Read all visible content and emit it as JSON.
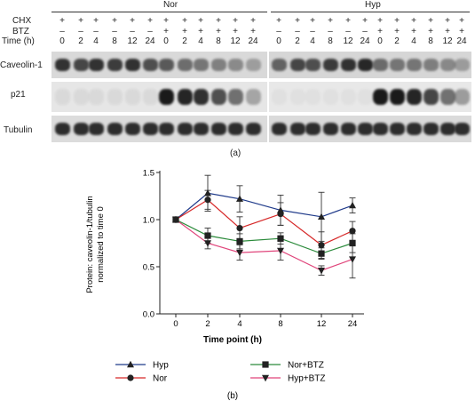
{
  "blot": {
    "groups": [
      {
        "name": "Nor",
        "lanes": 12
      },
      {
        "name": "Hyp",
        "lanes": 12
      }
    ],
    "row_labels": {
      "chx": "CHX",
      "btz": "BTZ",
      "time": "Time (h)"
    },
    "chx": [
      "+",
      "+",
      "+",
      "+",
      "+",
      "+",
      "+",
      "+",
      "+",
      "+",
      "+",
      "+"
    ],
    "btz": [
      "–",
      "–",
      "–",
      "–",
      "–",
      "–",
      "+",
      "+",
      "+",
      "+",
      "+",
      "+"
    ],
    "times": [
      "0",
      "2",
      "4",
      "8",
      "12",
      "24",
      "0",
      "2",
      "4",
      "8",
      "12",
      "24"
    ],
    "proteins": [
      "Caveolin-1",
      "p21",
      "Tubulin"
    ],
    "panel_label": "(a)",
    "intensity": {
      "nor_caveolin": [
        0.85,
        0.75,
        0.85,
        0.8,
        0.85,
        0.7,
        0.65,
        0.55,
        0.5,
        0.45,
        0.4,
        0.3
      ],
      "hyp_caveolin": [
        0.6,
        0.75,
        0.7,
        0.8,
        0.85,
        0.9,
        0.55,
        0.5,
        0.5,
        0.45,
        0.4,
        0.3
      ],
      "nor_p21": [
        0.06,
        0.06,
        0.06,
        0.06,
        0.06,
        0.06,
        0.95,
        0.9,
        0.85,
        0.7,
        0.55,
        0.3
      ],
      "hyp_p21": [
        0.03,
        0.03,
        0.03,
        0.03,
        0.03,
        0.03,
        0.95,
        0.95,
        0.9,
        0.75,
        0.55,
        0.35
      ],
      "tubulin": [
        0.9,
        0.9,
        0.9,
        0.9,
        0.9,
        0.9,
        0.9,
        0.9,
        0.9,
        0.9,
        0.9,
        0.9
      ]
    }
  },
  "chart_data": {
    "type": "line",
    "panel_label": "(b)",
    "xlabel": "Time point (h)",
    "ylabel": "Protein: caveolin-1/tubulin normalized to time 0",
    "ylabel_lines": [
      "Protein: caveolin-1/tubulin",
      "normalized to time 0"
    ],
    "categories": [
      "0",
      "2",
      "4",
      "8",
      "12",
      "24"
    ],
    "y_ticks": [
      "0.0",
      "0.5",
      "1.0",
      "1.5"
    ],
    "ylim": [
      0,
      1.5
    ],
    "series": [
      {
        "name": "Hyp",
        "color": "#1f3a8a",
        "marker": "triangle-up",
        "values": [
          1.0,
          1.28,
          1.22,
          1.1,
          1.03,
          1.15
        ],
        "err": [
          0,
          0.19,
          0.14,
          0.16,
          0.26,
          0.08
        ]
      },
      {
        "name": "Nor",
        "color": "#d62828",
        "marker": "circle",
        "values": [
          1.0,
          1.21,
          0.91,
          1.06,
          0.73,
          0.88
        ],
        "err": [
          0,
          0.1,
          0.12,
          0.12,
          0.14,
          0.1
        ]
      },
      {
        "name": "Nor+BTZ",
        "color": "#2a8a3a",
        "marker": "square",
        "values": [
          1.0,
          0.83,
          0.77,
          0.8,
          0.64,
          0.75
        ],
        "err": [
          0,
          0.08,
          0.08,
          0.06,
          0.06,
          0.1
        ]
      },
      {
        "name": "Hyp+BTZ",
        "color": "#e0457b",
        "marker": "triangle-down",
        "values": [
          1.0,
          0.75,
          0.65,
          0.67,
          0.46,
          0.58
        ],
        "err": [
          0,
          0.06,
          0.08,
          0.1,
          0.05,
          0.2
        ]
      }
    ],
    "legend_layout": "below, two columns"
  }
}
